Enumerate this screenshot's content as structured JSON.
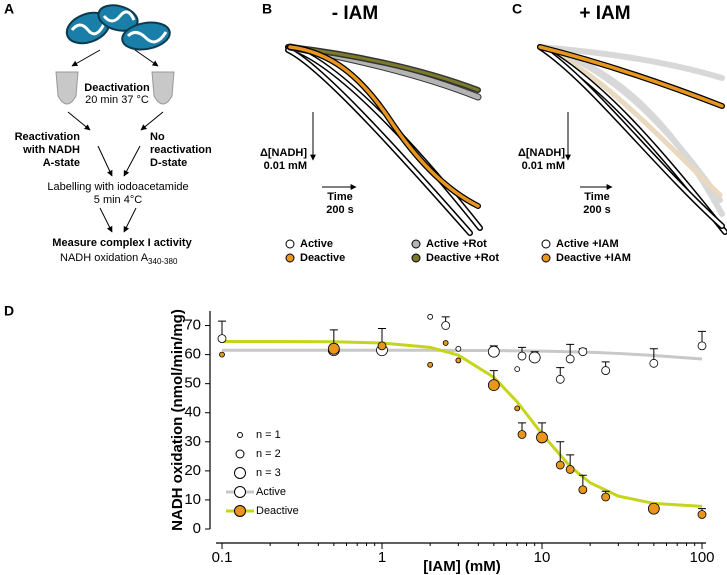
{
  "panel_a": {
    "letter": "A",
    "deactivation": "Deactivation",
    "deactivation_condition": "20 min 37 °C",
    "reactivation": [
      "Reactivation",
      "with NADH",
      "A-state"
    ],
    "no_reactivation": [
      "No",
      "reactivation",
      "D-state"
    ],
    "labelling": "Labelling with iodoacetamide",
    "labelling_condition": "5 min 4°C",
    "measure": "Measure complex I activity",
    "readout": "NADH oxidation A",
    "readout_subscript": "340-380"
  },
  "panel_b": {
    "letter": "B",
    "title": "- IAM",
    "scale_y": [
      "Δ[NADH]",
      "0.01 mM"
    ],
    "scale_x": [
      "Time",
      "200 s"
    ],
    "legend": [
      {
        "name": "Active",
        "color": "#ffffff"
      },
      {
        "name": "Deactive",
        "color": "#e8961e"
      },
      {
        "name": "Active +Rot",
        "color": "#b4b4b4"
      },
      {
        "name": "Deactive +Rot",
        "color": "#7a7a2a"
      }
    ]
  },
  "panel_c": {
    "letter": "C",
    "title": "+ IAM",
    "scale_y": [
      "Δ[NADH]",
      "0.01 mM"
    ],
    "scale_x": [
      "Time",
      "200 s"
    ],
    "legend": [
      {
        "name": "Active +IAM",
        "color": "#ffffff"
      },
      {
        "name": "Deactive +IAM",
        "color": "#e8961e"
      }
    ]
  },
  "chart_data": {
    "type": "scatter",
    "letter": "D",
    "xlabel": "[IAM] (mM)",
    "ylabel": "NADH oxidation (nmol/min/mg)",
    "xscale": "log",
    "xlim": [
      0.1,
      100
    ],
    "ylim": [
      0,
      75
    ],
    "xticks": [
      0.1,
      1,
      10,
      100
    ],
    "yticks": [
      0,
      10,
      20,
      30,
      40,
      50,
      60,
      70
    ],
    "size_legend": [
      {
        "value": 1,
        "label": "n = 1"
      },
      {
        "value": 2,
        "label": "n = 2"
      },
      {
        "value": 3,
        "label": "n = 3"
      }
    ],
    "series": [
      {
        "name": "Active",
        "color": "#ffffff",
        "fit_color": "#c8c8c8",
        "x": [
          0.1,
          0.5,
          1,
          2,
          2.5,
          3,
          5,
          7,
          7.5,
          9,
          13,
          15,
          18,
          25,
          50,
          100
        ],
        "values": [
          65.5,
          61.5,
          61.5,
          73,
          70,
          62,
          61,
          55,
          59.5,
          59,
          51.5,
          58.5,
          61,
          54.5,
          57,
          63
        ],
        "errors": [
          6,
          2,
          2,
          null,
          3,
          null,
          2,
          null,
          3,
          2,
          4,
          5,
          1,
          3,
          5,
          5
        ],
        "n": [
          2,
          3,
          3,
          1,
          2,
          1,
          3,
          1,
          2,
          3,
          2,
          2,
          2,
          2,
          2,
          2
        ],
        "fit_x": [
          0.1,
          0.2,
          0.5,
          1,
          2,
          3,
          5,
          7,
          10,
          15,
          20,
          30,
          50,
          100
        ],
        "fit_values": [
          61.5,
          61.5,
          61.5,
          61.5,
          61.5,
          61.4,
          61.4,
          61.3,
          61.2,
          61,
          60.8,
          60.4,
          59.7,
          58.5
        ]
      },
      {
        "name": "Deactive",
        "color": "#e8961e",
        "fit_color": "#c5d51c",
        "x": [
          0.1,
          0.5,
          1,
          2,
          2.5,
          3,
          5,
          7,
          7.5,
          10,
          13,
          15,
          18,
          25,
          50,
          100
        ],
        "values": [
          60,
          62,
          63,
          56.5,
          64,
          58,
          49.5,
          41.5,
          32.5,
          31.5,
          22,
          20.5,
          13.5,
          11,
          7,
          5
        ],
        "errors": [
          null,
          6.5,
          6,
          null,
          null,
          null,
          5,
          null,
          4,
          5,
          8,
          5,
          5,
          2,
          1,
          2
        ],
        "n": [
          1,
          3,
          2,
          1,
          1,
          1,
          3,
          1,
          2,
          3,
          2,
          2,
          2,
          2,
          3,
          2
        ],
        "fit_x": [
          0.1,
          0.2,
          0.5,
          1,
          2,
          3,
          5,
          7,
          10,
          15,
          20,
          30,
          50,
          100
        ],
        "fit_values": [
          64.5,
          64.5,
          64.4,
          64,
          62.5,
          59.8,
          52.2,
          43.7,
          32.7,
          21.5,
          15.9,
          11.3,
          8.8,
          7.8
        ]
      }
    ]
  }
}
